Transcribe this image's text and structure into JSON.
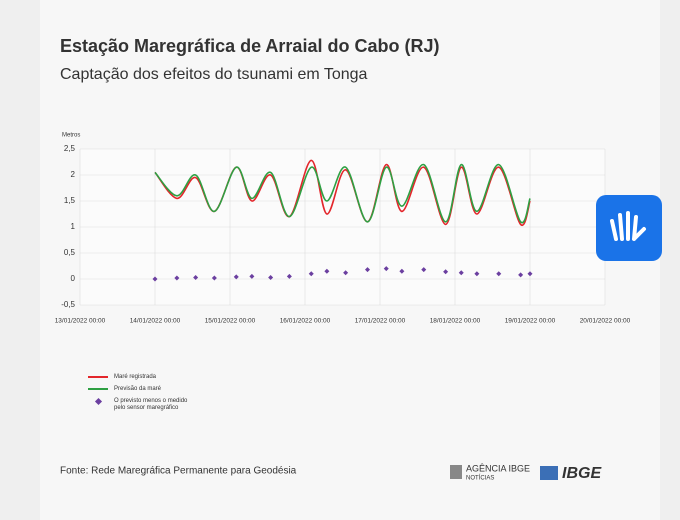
{
  "chart_data": {
    "type": "line",
    "title": "Estação Maregráfica de Arraial do Cabo (RJ)",
    "subtitle": "Captação dos efeitos do tsunami em Tonga",
    "y_label": "Metros",
    "source": "Fonte: Rede Maregráfica Permanente para Geodésia",
    "x": [
      "14/01/2022 00:00",
      "14/01/2022 07:00",
      "14/01/2022 13:00",
      "14/01/2022 19:00",
      "15/01/2022 02:00",
      "15/01/2022 07:00",
      "15/01/2022 13:00",
      "15/01/2022 19:00",
      "16/01/2022 02:00",
      "16/01/2022 07:00",
      "16/01/2022 13:00",
      "16/01/2022 20:00",
      "17/01/2022 02:00",
      "17/01/2022 07:00",
      "17/01/2022 14:00",
      "17/01/2022 21:00",
      "18/01/2022 02:00",
      "18/01/2022 07:00",
      "18/01/2022 14:00",
      "18/01/2022 21:00",
      "19/01/2022 00:00"
    ],
    "series": [
      {
        "name": "Maré registrada",
        "color": "#e3262b",
        "values": [
          2.05,
          1.55,
          1.95,
          1.3,
          2.15,
          1.5,
          2.0,
          1.2,
          2.28,
          1.25,
          2.1,
          1.1,
          2.2,
          1.3,
          2.15,
          1.05,
          2.15,
          1.25,
          2.15,
          1.05,
          1.5
        ]
      },
      {
        "name": "Previsão da maré",
        "color": "#2ea043",
        "values": [
          2.05,
          1.6,
          2.0,
          1.3,
          2.15,
          1.55,
          2.05,
          1.2,
          2.15,
          1.5,
          2.15,
          1.1,
          2.15,
          1.4,
          2.2,
          1.1,
          2.2,
          1.3,
          2.2,
          1.1,
          1.55
        ]
      },
      {
        "name": "O previsto menos o medido pelo sensor maregráfico",
        "color": "#6b3fa0",
        "style": "scatter",
        "values": [
          0,
          0.02,
          0.03,
          0.02,
          0.04,
          0.05,
          0.03,
          0.05,
          0.1,
          0.15,
          0.12,
          0.18,
          0.2,
          0.15,
          0.18,
          0.14,
          0.12,
          0.1,
          0.1,
          0.08,
          0.1
        ]
      }
    ],
    "xlim": [
      "13/01/2022 00:00",
      "20/01/2022 00:00"
    ],
    "xticks": [
      "13/01/2022 00:00",
      "14/01/2022 00:00",
      "15/01/2022 00:00",
      "16/01/2022 00:00",
      "17/01/2022 00:00",
      "18/01/2022 00:00",
      "19/01/2022 00:00",
      "20/01/2022 00:00"
    ],
    "ylim": [
      -0.5,
      2.5
    ],
    "yticks": [
      {
        "value": 2.5,
        "label": "2,5"
      },
      2,
      {
        "value": 1.5,
        "label": "1,5"
      },
      1,
      {
        "value": 0.5,
        "label": "0,5"
      },
      0,
      {
        "value": -0.5,
        "label": "-0,5"
      }
    ],
    "grid": true
  },
  "logos": {
    "agency": "AGÊNCIA IBGE",
    "agency_sub": "NOTÍCIAS",
    "brand": "IBGE"
  }
}
